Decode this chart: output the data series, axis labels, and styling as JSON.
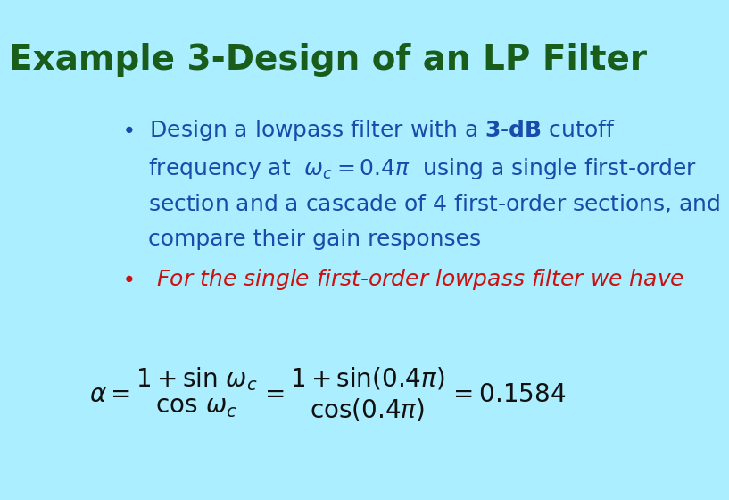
{
  "title": "Example 3-Design of an LP Filter",
  "title_color": "#1a5c1a",
  "background_color": "#aaeeff",
  "bullet1_color": "#1a4aaa",
  "bullet2_color": "#cc1111",
  "formula_color": "#111111",
  "title_fontsize": 28,
  "bullet_fontsize": 18,
  "formula_fontsize": 17
}
